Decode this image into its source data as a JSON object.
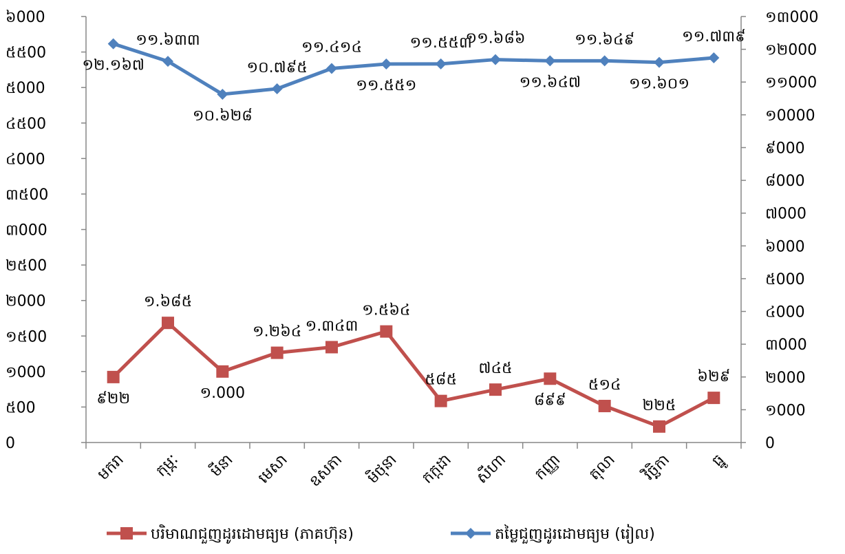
{
  "chart_data": {
    "type": "line",
    "categories": [
      "មករា",
      "កុម្ភៈ",
      "មីនា",
      "មេសា",
      "ឧសភា",
      "មិថុនា",
      "កក្កដា",
      "សីហា",
      "កញ្ញា",
      "តុលា",
      "វិច្ឆិកា",
      "ធ្នូ"
    ],
    "left_axis": {
      "range": [
        0,
        6000
      ],
      "ticks": [
        0,
        500,
        1000,
        1500,
        2000,
        2500,
        3000,
        3500,
        4000,
        4500,
        5000,
        5500,
        6000
      ],
      "tick_labels": [
        "0",
        "៥00",
        "១000",
        "១៥00",
        "២000",
        "២៥00",
        "៣000",
        "៣៥00",
        "៤000",
        "៤៥00",
        "៥000",
        "៥៥00",
        "៦000"
      ]
    },
    "right_axis": {
      "range": [
        0,
        13000
      ],
      "ticks": [
        0,
        1000,
        2000,
        3000,
        4000,
        5000,
        6000,
        7000,
        8000,
        9000,
        10000,
        11000,
        12000,
        13000
      ],
      "tick_labels": [
        "0",
        "១000",
        "២000",
        "៣000",
        "៤000",
        "៥000",
        "៦000",
        "៧000",
        "៨000",
        "៩000",
        "១0000",
        "១១000",
        "១២000",
        "១៣000"
      ]
    },
    "series": [
      {
        "name": "បរិមាណជួញដូរដោមធ្យម (ភាគហ៊ុន)",
        "axis": "left",
        "color": "#C0504D",
        "marker": "square",
        "values": [
          922,
          1685,
          1000,
          1264,
          1343,
          1564,
          585,
          745,
          899,
          514,
          225,
          629
        ],
        "labels": [
          "៩២២",
          "១.៦៨៥",
          "១.000",
          "១.២៦៤",
          "១.៣៤៣",
          "១.៥៦៤",
          "៥៨៥",
          "៧៤៥",
          "៨៩៩",
          "៥១៤",
          "២២៥",
          "៦២៩"
        ],
        "label_positions": [
          "below",
          "above",
          "below",
          "above",
          "above",
          "above",
          "above",
          "above",
          "below",
          "above",
          "above",
          "above"
        ]
      },
      {
        "name": "តម្លៃជួញដូរដោមធ្យម (រៀល)",
        "axis": "right",
        "color": "#4F81BD",
        "marker": "diamond",
        "values": [
          12167,
          11633,
          10628,
          10795,
          11414,
          11551,
          11553,
          11686,
          11647,
          11649,
          11601,
          11739
        ],
        "labels": [
          "១២.១៦៧",
          "១១.៦៣៣",
          "១០.៦២៨",
          "១០.៧៩៥",
          "១១.៤១៤",
          "១១.៥៥១",
          "១១.៥៥៣",
          "១១.៦៨៦",
          "១១.៦៤៧",
          "១១.៦៤៩",
          "១១.៦០១",
          "១១.៧៣៩"
        ],
        "label_positions": [
          "below",
          "above",
          "below",
          "above",
          "above",
          "below",
          "above",
          "above",
          "below",
          "above",
          "below",
          "above"
        ]
      }
    ],
    "legend": {
      "placement": "bottom"
    },
    "grid": false
  }
}
